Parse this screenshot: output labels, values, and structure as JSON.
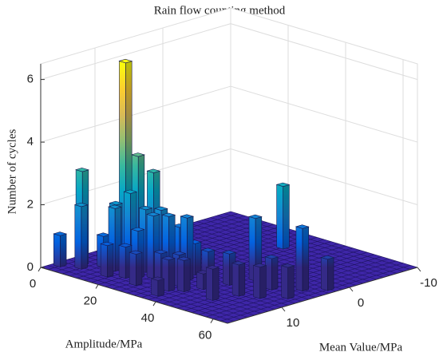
{
  "chart_data": {
    "type": "bar3",
    "title": "Rain flow counting method",
    "xlabel": "Amplitude/MPa",
    "ylabel": "Mean Value/MPa",
    "zlabel": "Number of cycles",
    "amplitude": [
      2,
      5,
      7,
      10,
      12,
      13,
      14,
      15,
      16,
      17,
      18,
      20,
      20,
      22,
      23,
      25,
      26,
      27,
      28,
      30,
      30,
      32,
      34,
      35,
      37,
      38,
      40,
      42,
      44,
      48,
      50,
      52,
      55,
      58,
      60,
      62,
      30,
      36
    ],
    "mean": [
      16,
      14,
      15,
      13,
      12,
      11,
      13,
      10,
      15,
      12,
      9,
      14,
      11,
      13,
      10,
      12,
      15,
      9,
      11,
      13,
      8,
      10,
      12,
      14,
      9,
      13,
      11,
      8,
      5,
      13,
      10,
      6,
      9,
      4,
      7,
      2,
      -5,
      16
    ],
    "counts": [
      1,
      3,
      2,
      1,
      2,
      6.5,
      2,
      3.5,
      1,
      2.5,
      3,
      1,
      2,
      1.5,
      2,
      2,
      1,
      1.5,
      2,
      1,
      1,
      2,
      1,
      1,
      1,
      1,
      0.5,
      1,
      2,
      1,
      1,
      1,
      1,
      2,
      1,
      1,
      2,
      0.5
    ],
    "xlim": [
      0,
      65
    ],
    "xticks": [
      0,
      20,
      40,
      60
    ],
    "ylim": [
      -10,
      18
    ],
    "yticks": [
      -10,
      0,
      10
    ],
    "zlim": [
      0,
      6.5
    ],
    "zticks": [
      0,
      2,
      4,
      6
    ],
    "colormap": [
      "#352a87",
      "#0363e1",
      "#1485d4",
      "#06a7c6",
      "#38b99e",
      "#92bf73",
      "#d9ba56",
      "#fcce2e",
      "#f9fb0e"
    ],
    "floor_color": "#3e26a8",
    "grid": true
  }
}
